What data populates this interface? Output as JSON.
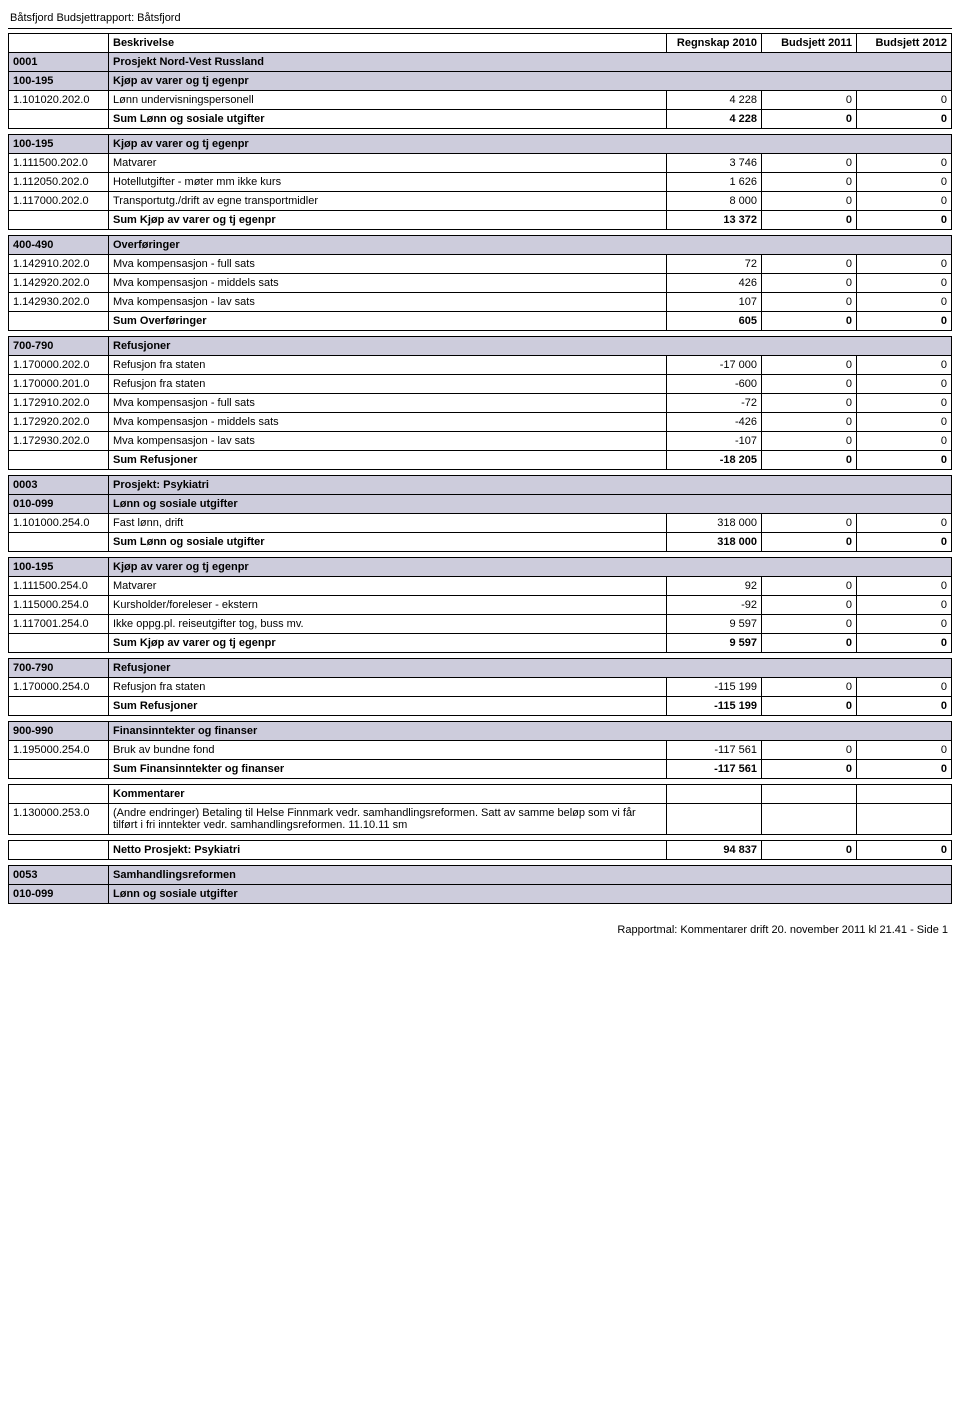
{
  "title": "Båtsfjord Budsjettrapport: Båtsfjord",
  "columns": {
    "desc": "Beskrivelse",
    "c1": "Regnskap 2010",
    "c2": "Budsjett 2011",
    "c3": "Budsjett 2012"
  },
  "colors": {
    "section_bg": "#cdccdc",
    "border": "#000000",
    "text": "#000000",
    "bg": "#ffffff"
  },
  "sections": [
    {
      "type": "section",
      "code": "0001",
      "label": "Prosjekt Nord-Vest Russland"
    },
    {
      "type": "section",
      "code": "100-195",
      "label": "Kjøp av varer og tj egenpr"
    },
    {
      "type": "row",
      "code": "1.101020.202.0",
      "label": "Lønn undervisningspersonell",
      "v1": "4 228",
      "v2": "0",
      "v3": "0"
    },
    {
      "type": "sum",
      "label": "Sum Lønn og sosiale utgifter",
      "v1": "4 228",
      "v2": "0",
      "v3": "0"
    },
    {
      "type": "spacer"
    },
    {
      "type": "section",
      "code": "100-195",
      "label": "Kjøp av varer og tj egenpr"
    },
    {
      "type": "row",
      "code": "1.111500.202.0",
      "label": "Matvarer",
      "v1": "3 746",
      "v2": "0",
      "v3": "0"
    },
    {
      "type": "row",
      "code": "1.112050.202.0",
      "label": "Hotellutgifter - møter mm  ikke kurs",
      "v1": "1 626",
      "v2": "0",
      "v3": "0"
    },
    {
      "type": "row",
      "code": "1.117000.202.0",
      "label": "Transportutg./drift av egne transportmidler",
      "v1": "8 000",
      "v2": "0",
      "v3": "0"
    },
    {
      "type": "sum",
      "label": "Sum Kjøp av varer og tj egenpr",
      "v1": "13 372",
      "v2": "0",
      "v3": "0"
    },
    {
      "type": "spacer"
    },
    {
      "type": "section",
      "code": "400-490",
      "label": "Overføringer"
    },
    {
      "type": "row",
      "code": "1.142910.202.0",
      "label": "Mva kompensasjon - full sats",
      "v1": "72",
      "v2": "0",
      "v3": "0"
    },
    {
      "type": "row",
      "code": "1.142920.202.0",
      "label": "Mva kompensasjon - middels sats",
      "v1": "426",
      "v2": "0",
      "v3": "0"
    },
    {
      "type": "row",
      "code": "1.142930.202.0",
      "label": "Mva kompensasjon - lav sats",
      "v1": "107",
      "v2": "0",
      "v3": "0"
    },
    {
      "type": "sum",
      "label": "Sum Overføringer",
      "v1": "605",
      "v2": "0",
      "v3": "0"
    },
    {
      "type": "spacer"
    },
    {
      "type": "section",
      "code": "700-790",
      "label": "Refusjoner"
    },
    {
      "type": "row",
      "code": "1.170000.202.0",
      "label": "Refusjon fra staten",
      "v1": "-17 000",
      "v2": "0",
      "v3": "0"
    },
    {
      "type": "row",
      "code": "1.170000.201.0",
      "label": "Refusjon fra staten",
      "v1": "-600",
      "v2": "0",
      "v3": "0"
    },
    {
      "type": "row",
      "code": "1.172910.202.0",
      "label": "Mva kompensasjon - full sats",
      "v1": "-72",
      "v2": "0",
      "v3": "0"
    },
    {
      "type": "row",
      "code": "1.172920.202.0",
      "label": "Mva kompensasjon - middels sats",
      "v1": "-426",
      "v2": "0",
      "v3": "0"
    },
    {
      "type": "row",
      "code": "1.172930.202.0",
      "label": "Mva kompensasjon - lav sats",
      "v1": "-107",
      "v2": "0",
      "v3": "0"
    },
    {
      "type": "sum",
      "label": "Sum Refusjoner",
      "v1": "-18 205",
      "v2": "0",
      "v3": "0"
    },
    {
      "type": "spacer"
    },
    {
      "type": "section",
      "code": "0003",
      "label": "Prosjekt: Psykiatri"
    },
    {
      "type": "section",
      "code": "010-099",
      "label": "Lønn og sosiale utgifter"
    },
    {
      "type": "row",
      "code": "1.101000.254.0",
      "label": "Fast lønn, drift",
      "v1": "318 000",
      "v2": "0",
      "v3": "0"
    },
    {
      "type": "sum",
      "label": "Sum Lønn og sosiale utgifter",
      "v1": "318 000",
      "v2": "0",
      "v3": "0"
    },
    {
      "type": "spacer"
    },
    {
      "type": "section",
      "code": "100-195",
      "label": "Kjøp av varer og tj egenpr"
    },
    {
      "type": "row",
      "code": "1.111500.254.0",
      "label": "Matvarer",
      "v1": "92",
      "v2": "0",
      "v3": "0"
    },
    {
      "type": "row",
      "code": "1.115000.254.0",
      "label": "Kursholder/foreleser - ekstern",
      "v1": "-92",
      "v2": "0",
      "v3": "0"
    },
    {
      "type": "row",
      "code": "1.117001.254.0",
      "label": "Ikke oppg.pl. reiseutgifter  tog, buss mv.",
      "v1": "9 597",
      "v2": "0",
      "v3": "0"
    },
    {
      "type": "sum",
      "label": "Sum Kjøp av varer og tj egenpr",
      "v1": "9 597",
      "v2": "0",
      "v3": "0"
    },
    {
      "type": "spacer"
    },
    {
      "type": "section",
      "code": "700-790",
      "label": "Refusjoner"
    },
    {
      "type": "row",
      "code": "1.170000.254.0",
      "label": "Refusjon fra staten",
      "v1": "-115 199",
      "v2": "0",
      "v3": "0"
    },
    {
      "type": "sum",
      "label": "Sum Refusjoner",
      "v1": "-115 199",
      "v2": "0",
      "v3": "0"
    },
    {
      "type": "spacer"
    },
    {
      "type": "section",
      "code": "900-990",
      "label": "Finansinntekter og finanser"
    },
    {
      "type": "row",
      "code": "1.195000.254.0",
      "label": "Bruk av bundne fond",
      "v1": "-117 561",
      "v2": "0",
      "v3": "0"
    },
    {
      "type": "sum",
      "label": "Sum Finansinntekter og finanser",
      "v1": "-117 561",
      "v2": "0",
      "v3": "0"
    },
    {
      "type": "spacer"
    },
    {
      "type": "komment-head",
      "label": "Kommentarer"
    },
    {
      "type": "komment",
      "code": "1.130000.253.0",
      "label": "(Andre endringer) Betaling til Helse Finnmark vedr. samhandlingsreformen. Satt av samme beløp som vi får tilført i fri inntekter vedr. samhandlingsreformen. 11.10.11 sm"
    },
    {
      "type": "spacer"
    },
    {
      "type": "sum",
      "label": "Netto Prosjekt: Psykiatri",
      "v1": "94 837",
      "v2": "0",
      "v3": "0"
    },
    {
      "type": "spacer"
    },
    {
      "type": "section",
      "code": "0053",
      "label": "Samhandlingsreformen"
    },
    {
      "type": "section",
      "code": "010-099",
      "label": "Lønn og sosiale utgifter"
    }
  ],
  "footer": "Rapportmal: Kommentarer drift 20. november 2011 kl 21.41 - Side 1"
}
